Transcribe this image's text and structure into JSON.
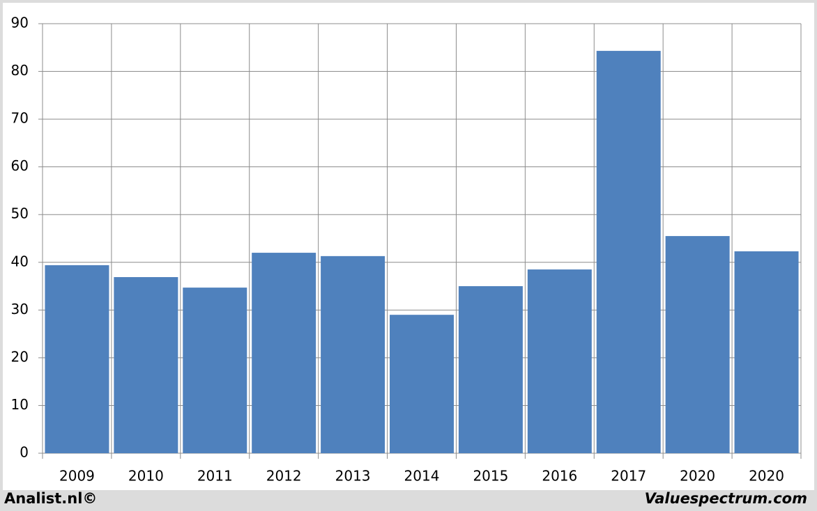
{
  "chart_data": {
    "type": "bar",
    "categories": [
      "2009",
      "2010",
      "2011",
      "2012",
      "2013",
      "2014",
      "2015",
      "2016",
      "2017",
      "2020",
      "2020"
    ],
    "values": [
      39.4,
      36.9,
      34.7,
      42.0,
      41.3,
      29.0,
      35.0,
      38.5,
      84.3,
      45.5,
      42.3
    ],
    "color": "#4f81bd",
    "ylim": [
      0,
      90
    ],
    "yticks": [
      0,
      10,
      20,
      30,
      40,
      50,
      60,
      70,
      80,
      90
    ],
    "grid": true,
    "source_left": "Analist.nl©",
    "source_right": "Valuespectrum.com"
  }
}
